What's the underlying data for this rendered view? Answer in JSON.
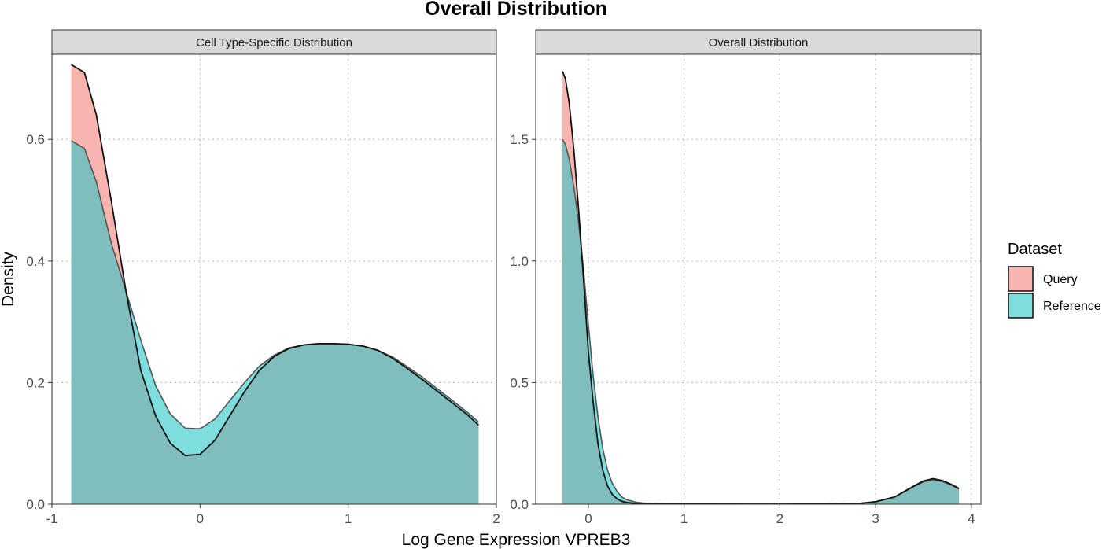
{
  "chart_data": {
    "type": "area",
    "title": "Overall Distribution",
    "xlabel": "Log Gene Expression VPREB3",
    "ylabel": "Density",
    "grid": true,
    "legend": {
      "title": "Dataset",
      "placement": "right",
      "entries": [
        {
          "label": "Query",
          "color": "#F8B5B0"
        },
        {
          "label": "Reference",
          "color": "#7EDEDE"
        }
      ]
    },
    "overlap_color": "#80BEBE",
    "panels": [
      {
        "strip": "Cell Type-Specific Distribution",
        "xlim": [
          -1,
          2
        ],
        "ylim": [
          0,
          0.74
        ],
        "xticks": [
          -1,
          0,
          1,
          2
        ],
        "xtick_labels": [
          "-1",
          "0",
          "1",
          "2"
        ],
        "yticks": [
          0.0,
          0.2,
          0.4,
          0.6
        ],
        "ytick_labels": [
          "0.0",
          "0.2",
          "0.4",
          "0.6"
        ],
        "series": [
          {
            "name": "Query",
            "x": [
              -0.87,
              -0.78,
              -0.7,
              -0.6,
              -0.5,
              -0.4,
              -0.3,
              -0.2,
              -0.1,
              0.0,
              0.1,
              0.2,
              0.3,
              0.4,
              0.5,
              0.6,
              0.7,
              0.8,
              0.9,
              1.0,
              1.1,
              1.2,
              1.3,
              1.4,
              1.5,
              1.6,
              1.7,
              1.8,
              1.88
            ],
            "y": [
              0.723,
              0.71,
              0.64,
              0.5,
              0.35,
              0.22,
              0.145,
              0.1,
              0.08,
              0.082,
              0.105,
              0.145,
              0.185,
              0.22,
              0.243,
              0.256,
              0.262,
              0.264,
              0.264,
              0.263,
              0.26,
              0.253,
              0.24,
              0.223,
              0.205,
              0.186,
              0.167,
              0.148,
              0.13
            ]
          },
          {
            "name": "Reference",
            "x": [
              -0.87,
              -0.78,
              -0.7,
              -0.6,
              -0.5,
              -0.4,
              -0.3,
              -0.2,
              -0.1,
              0.0,
              0.1,
              0.2,
              0.3,
              0.4,
              0.5,
              0.6,
              0.7,
              0.8,
              0.9,
              1.0,
              1.1,
              1.2,
              1.3,
              1.4,
              1.5,
              1.6,
              1.7,
              1.8,
              1.88
            ],
            "y": [
              0.598,
              0.585,
              0.53,
              0.43,
              0.35,
              0.27,
              0.195,
              0.148,
              0.125,
              0.124,
              0.14,
              0.17,
              0.2,
              0.227,
              0.245,
              0.257,
              0.262,
              0.264,
              0.264,
              0.263,
              0.26,
              0.253,
              0.242,
              0.226,
              0.209,
              0.19,
              0.171,
              0.152,
              0.135
            ]
          }
        ]
      },
      {
        "strip": "Overall Distribution",
        "xlim": [
          -0.55,
          4.1
        ],
        "ylim": [
          0,
          1.85
        ],
        "xticks": [
          0,
          1,
          2,
          3,
          4
        ],
        "xtick_labels": [
          "0",
          "1",
          "2",
          "3",
          "4"
        ],
        "yticks": [
          0.0,
          0.5,
          1.0,
          1.5
        ],
        "ytick_labels": [
          "0.0",
          "0.5",
          "1.0",
          "1.5"
        ],
        "series": [
          {
            "name": "Query",
            "x": [
              -0.27,
              -0.24,
              -0.2,
              -0.15,
              -0.1,
              -0.05,
              0.0,
              0.05,
              0.1,
              0.15,
              0.2,
              0.25,
              0.3,
              0.35,
              0.4,
              0.5,
              0.6,
              0.7,
              0.8,
              1.0,
              2.0,
              2.5,
              2.8,
              3.0,
              3.2,
              3.4,
              3.5,
              3.6,
              3.7,
              3.8,
              3.87
            ],
            "y": [
              1.78,
              1.75,
              1.65,
              1.45,
              1.2,
              0.92,
              0.63,
              0.42,
              0.25,
              0.14,
              0.075,
              0.04,
              0.022,
              0.012,
              0.007,
              0.003,
              0.0015,
              0.0008,
              0.0005,
              0.0002,
              0.0001,
              0.0002,
              0.002,
              0.01,
              0.03,
              0.075,
              0.096,
              0.105,
              0.097,
              0.08,
              0.065
            ]
          },
          {
            "name": "Reference",
            "x": [
              -0.27,
              -0.24,
              -0.2,
              -0.15,
              -0.1,
              -0.05,
              0.0,
              0.05,
              0.1,
              0.15,
              0.2,
              0.25,
              0.3,
              0.35,
              0.4,
              0.5,
              0.6,
              0.7,
              0.8,
              1.0,
              2.0,
              2.5,
              2.8,
              3.0,
              3.2,
              3.4,
              3.5,
              3.6,
              3.7,
              3.8,
              3.87
            ],
            "y": [
              1.5,
              1.48,
              1.42,
              1.3,
              1.15,
              0.96,
              0.74,
              0.53,
              0.36,
              0.23,
              0.14,
              0.085,
              0.052,
              0.03,
              0.018,
              0.008,
              0.0035,
              0.0015,
              0.0008,
              0.0003,
              0.0001,
              0.0002,
              0.002,
              0.01,
              0.03,
              0.072,
              0.092,
              0.1,
              0.093,
              0.077,
              0.062
            ]
          }
        ]
      }
    ]
  }
}
